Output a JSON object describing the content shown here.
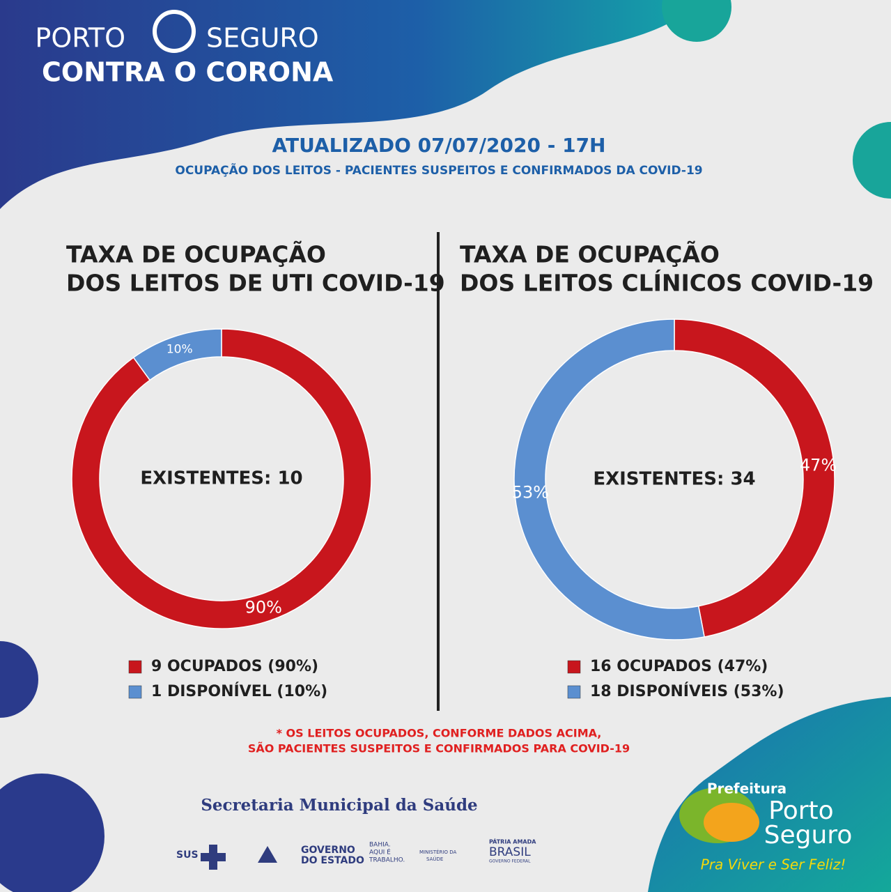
{
  "header": {
    "brand_left": "PORTO",
    "brand_right": "SEGURO",
    "tagline": "CONTRA O CORONA"
  },
  "updated": "ATUALIZADO 07/07/2020 - 17H",
  "subtitle": "OCUPAÇÃO DOS LEITOS - PACIENTES SUSPEITOS E CONFIRMADOS DA COVID-19",
  "chart_data": [
    {
      "type": "donut",
      "title": [
        "TAXA DE OCUPAÇÃO",
        "DOS LEITOS DE UTI COVID-19"
      ],
      "center_label": "EXISTENTES: 10",
      "categories": [
        "9 OCUPADOS (90%)",
        "1 DISPONÍVEL (10%)"
      ],
      "values": [
        90,
        10
      ],
      "value_labels": [
        "90%",
        "10%"
      ],
      "colors": [
        "#c8161d",
        "#5b8fd0"
      ]
    },
    {
      "type": "donut",
      "title": [
        "TAXA DE OCUPAÇÃO",
        "DOS LEITOS CLÍNICOS COVID-19"
      ],
      "center_label": "EXISTENTES: 34",
      "categories": [
        "16 OCUPADOS (47%)",
        "18 DISPONÍVEIS (53%)"
      ],
      "values": [
        47,
        53
      ],
      "value_labels": [
        "47%",
        "53%"
      ],
      "colors": [
        "#c8161d",
        "#5b8fd0"
      ]
    }
  ],
  "note": [
    "* OS LEITOS OCUPADOS, CONFORME DADOS ACIMA,",
    "SÃO PACIENTES SUSPEITOS E CONFIRMADOS PARA COVID-19"
  ],
  "footer": {
    "secretaria": "Secretaria Municipal da Saúde",
    "sus": "SUS",
    "governo": [
      "GOVERNO",
      "DO ESTADO"
    ],
    "bahia": [
      "BAHIA.",
      "AQUI É",
      "TRABALHO."
    ],
    "ministerio": [
      "MINISTÉRIO DA",
      "SAÚDE"
    ],
    "brasil": [
      "PÁTRIA AMADA",
      "BRASIL",
      "GOVERNO FEDERAL"
    ],
    "prefeitura": "Prefeitura",
    "porto": "Porto",
    "seguro": "Seguro",
    "slogan": "Pra Viver e Ser Feliz!"
  }
}
